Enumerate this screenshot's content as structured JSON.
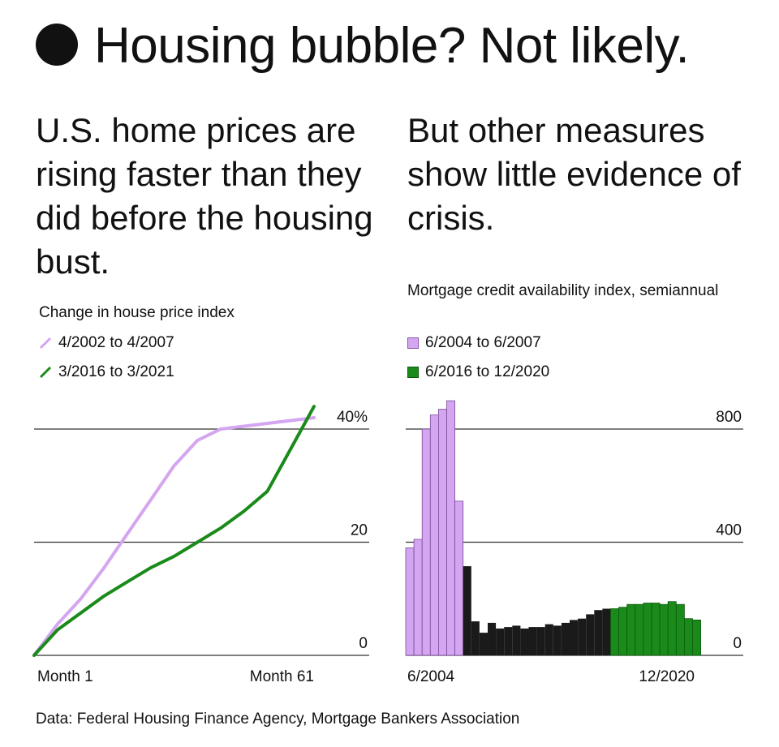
{
  "headline": "Housing bubble? Not likely.",
  "left_subhead": "U.S. home prices are rising faster than they did before the housing bust.",
  "right_subhead": "But other measures show little evidence of crisis.",
  "source": "Data: Federal Housing Finance Agency, Mortgage Bankers Association",
  "colors": {
    "lilac": "#d4a5f0",
    "green": "#1a8a1a",
    "black": "#1a1a1a",
    "grid": "#222222"
  },
  "chart_data": [
    {
      "type": "line",
      "title": "Change in house price index",
      "x_tick_labels": [
        "Month 1",
        "Month 61"
      ],
      "y_tick_labels": [
        "40%",
        "20",
        "0"
      ],
      "y_ticks": [
        40,
        20,
        0
      ],
      "xlim": [
        1,
        61
      ],
      "ylim": [
        0,
        40
      ],
      "grid": true,
      "legend_position": "top-left",
      "x": [
        1,
        6,
        11,
        16,
        21,
        26,
        31,
        36,
        41,
        46,
        51,
        56,
        61
      ],
      "series": [
        {
          "name": "4/2002 to 4/2007",
          "color": "#d4a5f0",
          "values": [
            0,
            5.5,
            10,
            15.5,
            21.5,
            27.5,
            33.5,
            38,
            40,
            40.5,
            41,
            41.5,
            42
          ]
        },
        {
          "name": "3/2016 to 3/2021",
          "color": "#1a8a1a",
          "values": [
            0,
            4.5,
            7.5,
            10.5,
            13,
            15.5,
            17.5,
            20,
            22.5,
            25.5,
            29,
            36.5,
            44
          ]
        }
      ]
    },
    {
      "type": "bar",
      "title": "Mortgage credit availability index, semiannual",
      "x_tick_labels": [
        "6/2004",
        "12/2020"
      ],
      "y_tick_labels": [
        "800",
        "400",
        "0"
      ],
      "y_ticks": [
        800,
        400,
        0
      ],
      "ylim": [
        0,
        800
      ],
      "grid": true,
      "legend_position": "top-left",
      "legend": [
        {
          "label": "6/2004 to 6/2007",
          "color": "#d4a5f0"
        },
        {
          "label": "6/2016 to 12/2020",
          "color": "#1a8a1a"
        }
      ],
      "series": [
        {
          "name": "6/2004 to 6/2007",
          "color": "#d4a5f0",
          "values": [
            380,
            410,
            800,
            850,
            870,
            900,
            545
          ]
        },
        {
          "name": "",
          "color": "#1a1a1a",
          "values": [
            315,
            120,
            80,
            115,
            95,
            100,
            105,
            95,
            100,
            100,
            110,
            105,
            115,
            125,
            130,
            145,
            160,
            165
          ]
        },
        {
          "name": "6/2016 to 12/2020",
          "color": "#1a8a1a",
          "values": [
            165,
            170,
            180,
            180,
            185,
            185,
            180,
            190,
            180,
            130,
            125
          ]
        }
      ]
    }
  ]
}
